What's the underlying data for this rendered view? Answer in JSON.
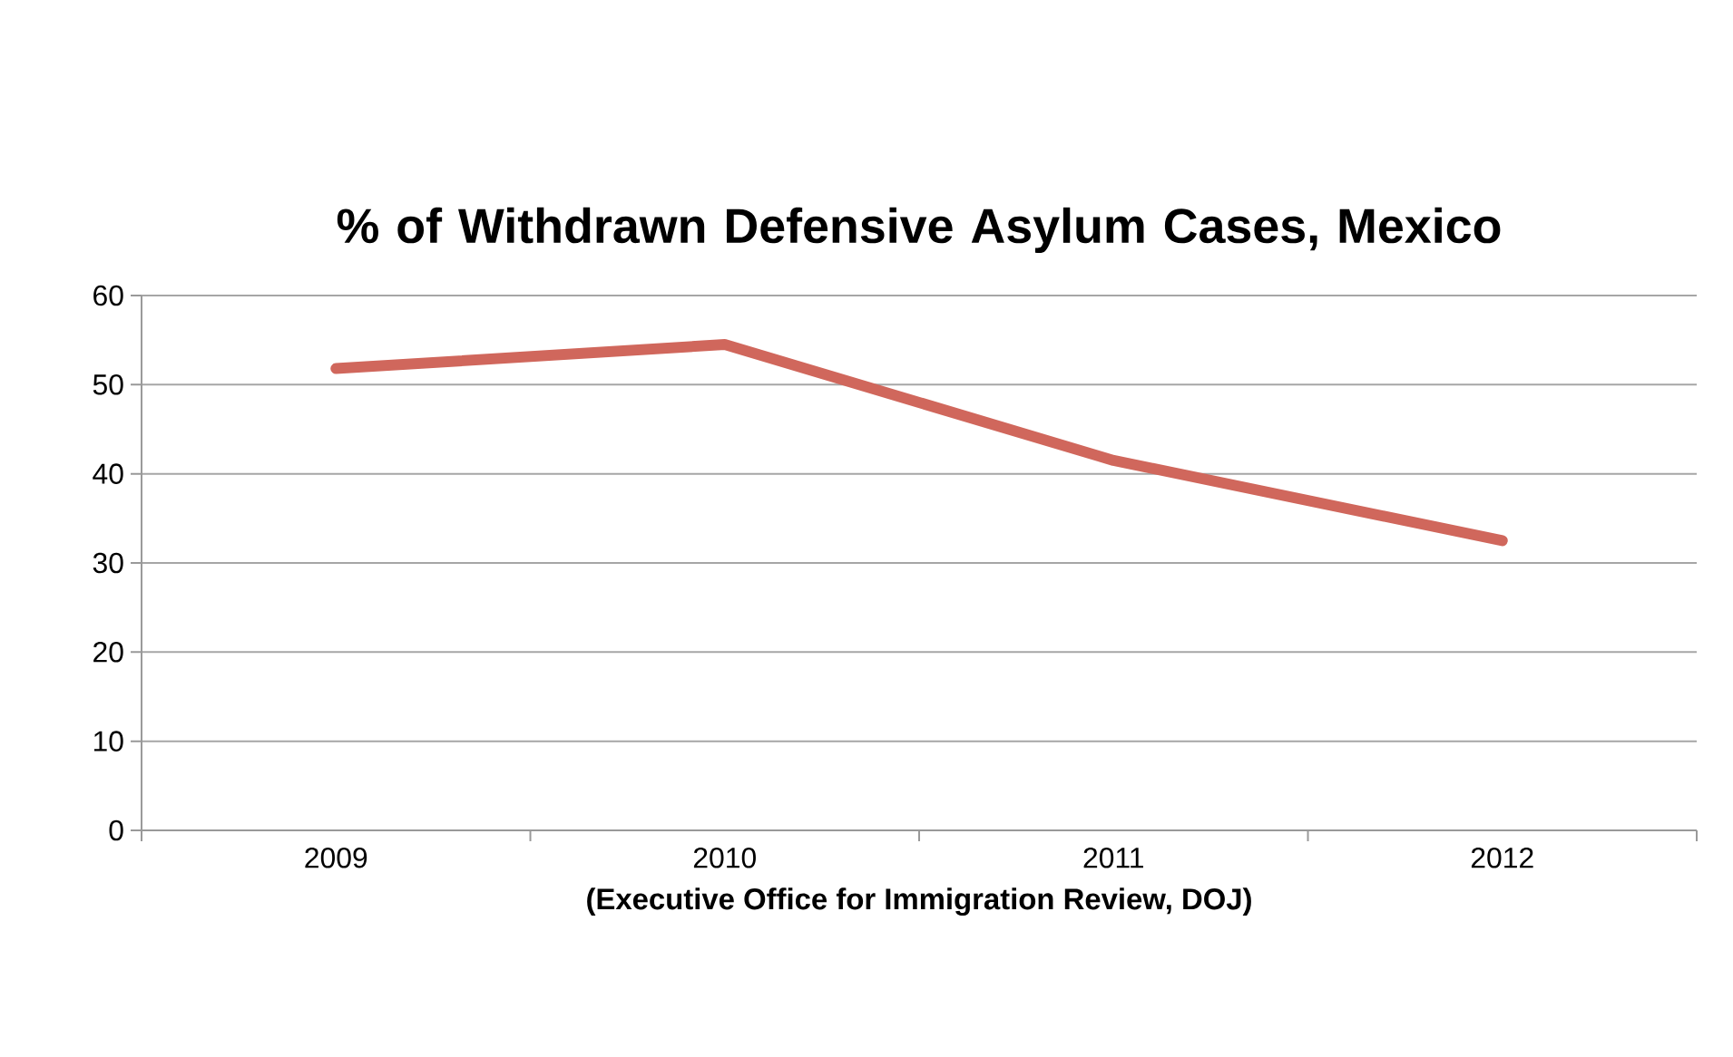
{
  "chart_data": {
    "type": "line",
    "title": "% of Withdrawn Defensive Asylum Cases, Mexico",
    "xlabel": "(Executive Office for Immigration Review, DOJ)",
    "categories": [
      "2009",
      "2010",
      "2011",
      "2012"
    ],
    "series": [
      {
        "color": "#d0675c",
        "values": [
          51.8,
          54.5,
          41.5,
          32.5
        ]
      }
    ],
    "ylim": [
      0,
      60
    ],
    "yticks": [
      0,
      10,
      20,
      30,
      40,
      50,
      60
    ],
    "grid": "y",
    "marker": "none",
    "line_style": "solid"
  }
}
